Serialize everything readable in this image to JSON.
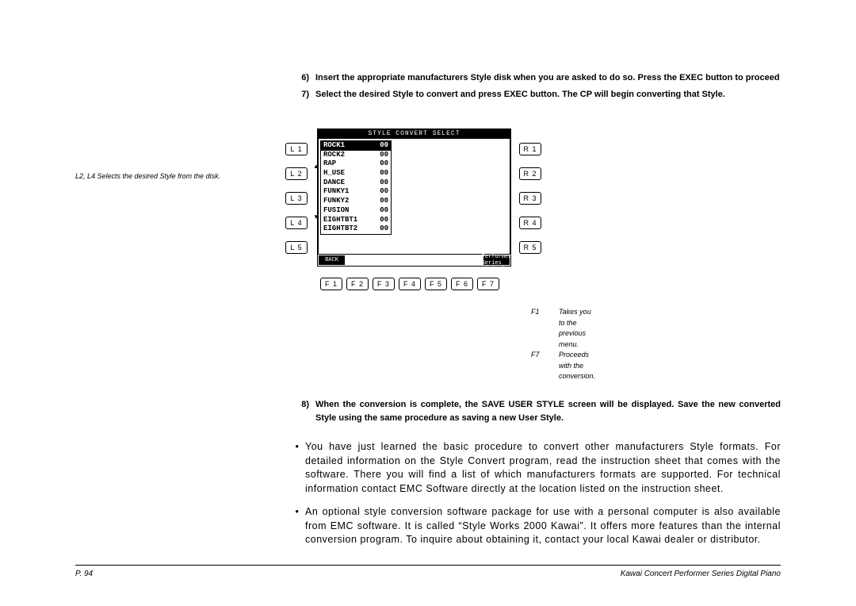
{
  "instructions_top": [
    {
      "num": "6)",
      "text": "Insert the appropriate manufacturers Style disk when you are asked to do so.  Press the EXEC button to proceed"
    },
    {
      "num": "7)",
      "text": "Select the desired Style to convert and press EXEC button.  The CP will begin converting that Style."
    }
  ],
  "left_caption": "L2, L4  Selects the desired Style from the disk.",
  "side_btns_left": [
    "L 1",
    "L 2",
    "L 3",
    "L 4",
    "L 5"
  ],
  "side_btns_right": [
    "R 1",
    "R 2",
    "R 3",
    "R 4",
    "R 5"
  ],
  "screen_title": "STYLE CONVERT SELECT",
  "list": [
    {
      "name": "ROCK1",
      "val": "00",
      "sel": true
    },
    {
      "name": "ROCK2",
      "val": "00"
    },
    {
      "name": "RAP",
      "val": "00"
    },
    {
      "name": "H_USE",
      "val": "00"
    },
    {
      "name": "DANCE",
      "val": "00"
    },
    {
      "name": "FUNKY1",
      "val": "00"
    },
    {
      "name": "FUNKY2",
      "val": "00"
    },
    {
      "name": "FUSION",
      "val": "00"
    },
    {
      "name": "EIGHTBT1",
      "val": "00"
    },
    {
      "name": "EIGHTBT2",
      "val": "00"
    }
  ],
  "footer_left": "BACK",
  "footer_right": "Kawai Concert Performer Series Digital Piano",
  "f_btns": [
    "F 1",
    "F 2",
    "F 3",
    "F 4",
    "F 5",
    "F 6",
    "F 7"
  ],
  "bottom_caption": [
    {
      "label": "F1",
      "text": "Takes you to the previous menu."
    },
    {
      "label": "F7",
      "text": "Proceeds with the conversion."
    }
  ],
  "instructions_mid": [
    {
      "num": "8)",
      "text": "When the conversion is complete, the SAVE USER STYLE screen will be displayed.  Save the new converted Style using the same procedure as saving a new User Style."
    }
  ],
  "paras": [
    "You have just learned the basic procedure to convert other manufacturers Style formats.  For detailed information on the Style Convert program, read the instruction sheet that comes with the software.  There you will find a list of which manufacturers formats are supported.  For technical information contact EMC Software directly at the location listed on the instruction sheet.",
    "An optional style conversion software package for use with a personal computer is also available from EMC software.  It is called “Style Works 2000 Kawai”.  It offers more features than the internal conversion program.  To inquire about obtaining it, contact your local Kawai dealer or distributor."
  ],
  "footer_page": "P. 94"
}
